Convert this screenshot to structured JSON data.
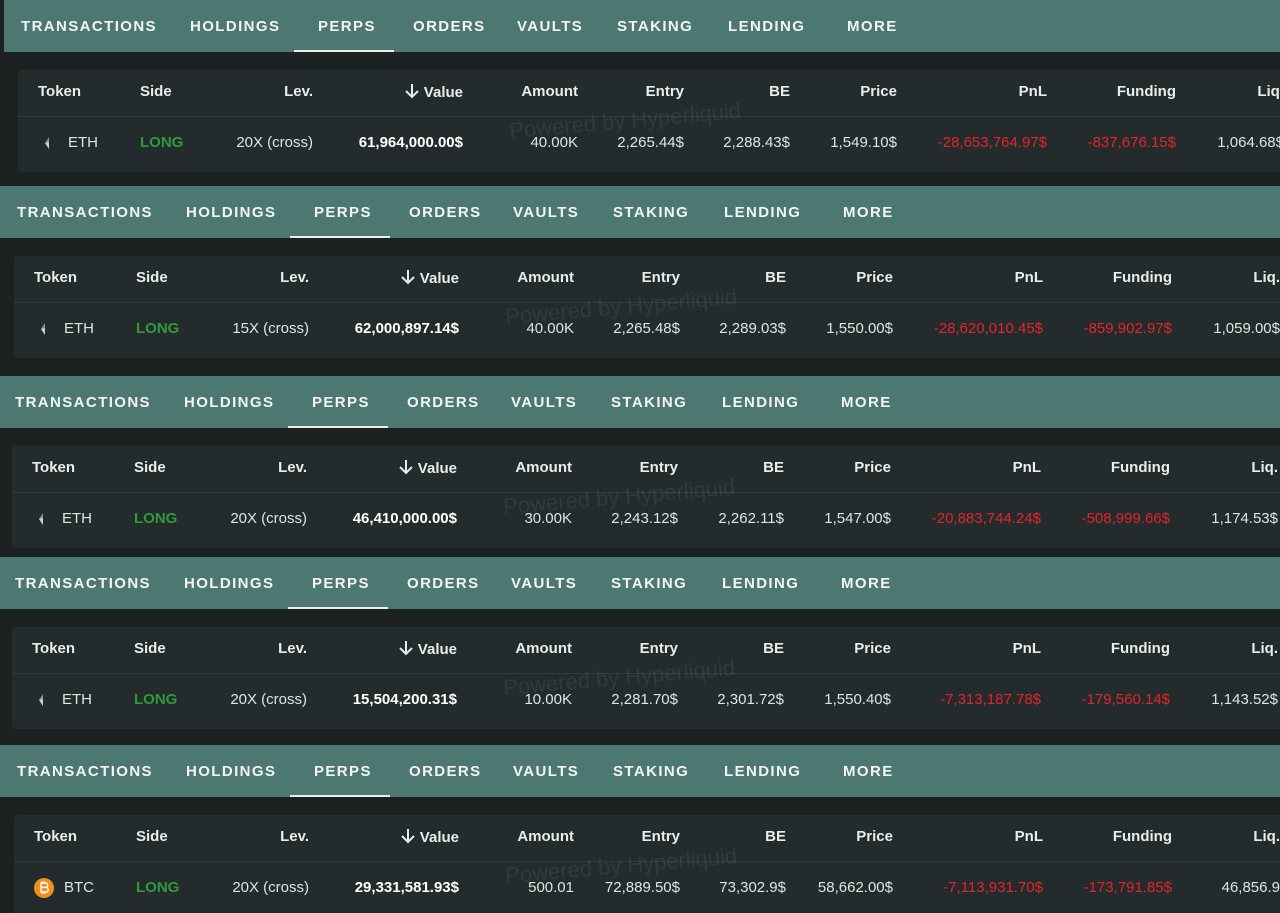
{
  "watermark": "Powered by Hyperliquid",
  "panels": [
    {
      "tabs": [
        "TRANSACTIONS",
        "HOLDINGS",
        "PERPS",
        "ORDERS",
        "VAULTS",
        "STAKING",
        "LENDING",
        "MORE"
      ],
      "headers": [
        "Token",
        "Side",
        "Lev.",
        "Value",
        "Amount",
        "Entry",
        "BE",
        "Price",
        "PnL",
        "Funding",
        "Liq."
      ],
      "row": [
        "ETH",
        "LONG",
        "20X (cross)",
        "61,964,000.00$",
        "40.00K",
        "2,265.44$",
        "2,288.43$",
        "1,549.10$",
        "-28,653,764.97$",
        "-837,676.15$",
        "1,064.68$"
      ]
    },
    {
      "tabs": [
        "TRANSACTIONS",
        "HOLDINGS",
        "PERPS",
        "ORDERS",
        "VAULTS",
        "STAKING",
        "LENDING",
        "MORE"
      ],
      "headers": [
        "Token",
        "Side",
        "Lev.",
        "Value",
        "Amount",
        "Entry",
        "BE",
        "Price",
        "PnL",
        "Funding",
        "Liq."
      ],
      "row": [
        "ETH",
        "LONG",
        "15X (cross)",
        "62,000,897.14$",
        "40.00K",
        "2,265.48$",
        "2,289.03$",
        "1,550.00$",
        "-28,620,010.45$",
        "-859,902.97$",
        "1,059.00$"
      ]
    },
    {
      "tabs": [
        "TRANSACTIONS",
        "HOLDINGS",
        "PERPS",
        "ORDERS",
        "VAULTS",
        "STAKING",
        "LENDING",
        "MORE"
      ],
      "headers": [
        "Token",
        "Side",
        "Lev.",
        "Value",
        "Amount",
        "Entry",
        "BE",
        "Price",
        "PnL",
        "Funding",
        "Liq."
      ],
      "row": [
        "ETH",
        "LONG",
        "20X (cross)",
        "46,410,000.00$",
        "30.00K",
        "2,243.12$",
        "2,262.11$",
        "1,547.00$",
        "-20,883,744.24$",
        "-508,999.66$",
        "1,174.53$"
      ]
    },
    {
      "tabs": [
        "TRANSACTIONS",
        "HOLDINGS",
        "PERPS",
        "ORDERS",
        "VAULTS",
        "STAKING",
        "LENDING",
        "MORE"
      ],
      "headers": [
        "Token",
        "Side",
        "Lev.",
        "Value",
        "Amount",
        "Entry",
        "BE",
        "Price",
        "PnL",
        "Funding",
        "Liq."
      ],
      "row": [
        "ETH",
        "LONG",
        "20X (cross)",
        "15,504,200.31$",
        "10.00K",
        "2,281.70$",
        "2,301.72$",
        "1,550.40$",
        "-7,313,187.78$",
        "-179,560.14$",
        "1,143.52$"
      ]
    },
    {
      "tabs": [
        "TRANSACTIONS",
        "HOLDINGS",
        "PERPS",
        "ORDERS",
        "VAULTS",
        "STAKING",
        "LENDING",
        "MORE"
      ],
      "headers": [
        "Token",
        "Side",
        "Lev.",
        "Value",
        "Amount",
        "Entry",
        "BE",
        "Price",
        "PnL",
        "Funding",
        "Liq."
      ],
      "row": [
        "BTC",
        "LONG",
        "20X (cross)",
        "29,331,581.93$",
        "500.01",
        "72,889.50$",
        "73,302.9$",
        "58,662.00$",
        "-7,113,931.70$",
        "-173,791.85$",
        "46,856.9"
      ]
    }
  ]
}
